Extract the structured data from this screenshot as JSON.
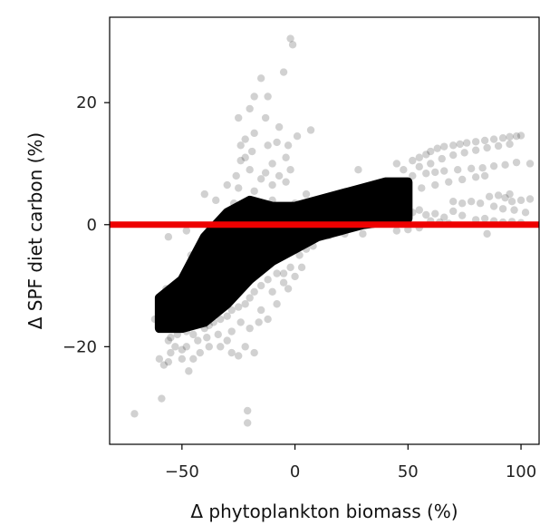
{
  "chart_data": {
    "type": "scatter",
    "title": "",
    "xlabel": "Δ phytoplankton biomass (%)",
    "ylabel": "Δ SPF diet carbon (%)",
    "xlim": [
      -82,
      108
    ],
    "ylim": [
      -36,
      34
    ],
    "xticks": [
      -50,
      0,
      50,
      100
    ],
    "yticks": [
      -20,
      0,
      20
    ],
    "xtick_labels": [
      "−50",
      "0",
      "50",
      "100"
    ],
    "ytick_labels": [
      "−20",
      "0",
      "20"
    ],
    "grid": false,
    "legend": "none",
    "point_color": "#000000",
    "point_opacity": 0.18,
    "reference_line": {
      "y": 0,
      "color": "#ee0000"
    },
    "dense_band": [
      {
        "x": -60,
        "y_low": -17,
        "y_high": -12
      },
      {
        "x": -50,
        "y_low": -17,
        "y_high": -9
      },
      {
        "x": -40,
        "y_low": -16,
        "y_high": -2
      },
      {
        "x": -30,
        "y_low": -13,
        "y_high": 2
      },
      {
        "x": -20,
        "y_low": -9,
        "y_high": 4
      },
      {
        "x": -10,
        "y_low": -6,
        "y_high": 3
      },
      {
        "x": 0,
        "y_low": -4,
        "y_high": 3
      },
      {
        "x": 10,
        "y_low": -2,
        "y_high": 4
      },
      {
        "x": 20,
        "y_low": -1,
        "y_high": 5
      },
      {
        "x": 30,
        "y_low": 0,
        "y_high": 6
      },
      {
        "x": 40,
        "y_low": 0.5,
        "y_high": 7
      },
      {
        "x": 50,
        "y_low": 1,
        "y_high": 7
      }
    ],
    "points": [
      [
        -2,
        30.5
      ],
      [
        -1,
        29.5
      ],
      [
        -5,
        25
      ],
      [
        -15,
        24
      ],
      [
        -18,
        21
      ],
      [
        -12,
        21
      ],
      [
        -20,
        19
      ],
      [
        -25,
        17.5
      ],
      [
        -13,
        17.5
      ],
      [
        -7,
        16
      ],
      [
        7,
        15.5
      ],
      [
        -18,
        15
      ],
      [
        -22,
        14
      ],
      [
        1,
        14.5
      ],
      [
        -12,
        13
      ],
      [
        -8,
        13.5
      ],
      [
        -3,
        13
      ],
      [
        -24,
        13
      ],
      [
        -19,
        12
      ],
      [
        -4,
        11
      ],
      [
        -22,
        11
      ],
      [
        -10,
        10
      ],
      [
        -24,
        10.5
      ],
      [
        -2,
        9
      ],
      [
        -20,
        9
      ],
      [
        -13,
        8.5
      ],
      [
        -26,
        8
      ],
      [
        -7,
        8
      ],
      [
        -15,
        7.5
      ],
      [
        -4,
        7
      ],
      [
        -30,
        6.5
      ],
      [
        -25,
        6
      ],
      [
        -10,
        6.5
      ],
      [
        -18,
        5.5
      ],
      [
        -40,
        5
      ],
      [
        -35,
        4
      ],
      [
        -10,
        4
      ],
      [
        5,
        5
      ],
      [
        -27,
        3.5
      ],
      [
        18,
        4
      ],
      [
        28,
        9
      ],
      [
        45,
        10
      ],
      [
        48,
        9
      ],
      [
        52,
        10.5
      ],
      [
        55,
        11
      ],
      [
        58,
        11.5
      ],
      [
        60,
        12
      ],
      [
        63,
        12.5
      ],
      [
        66,
        12.8
      ],
      [
        70,
        13
      ],
      [
        73,
        13.2
      ],
      [
        76,
        13.4
      ],
      [
        80,
        13.6
      ],
      [
        84,
        13.8
      ],
      [
        88,
        14
      ],
      [
        92,
        14.2
      ],
      [
        95,
        14.4
      ],
      [
        98,
        14.5
      ],
      [
        100,
        14.6
      ],
      [
        104,
        10
      ],
      [
        55,
        9.5
      ],
      [
        60,
        10
      ],
      [
        65,
        10.8
      ],
      [
        70,
        11.4
      ],
      [
        75,
        11.8
      ],
      [
        80,
        12.2
      ],
      [
        85,
        12.6
      ],
      [
        90,
        12.9
      ],
      [
        95,
        13.2
      ],
      [
        52,
        8
      ],
      [
        58,
        8.4
      ],
      [
        62,
        8.6
      ],
      [
        66,
        8.8
      ],
      [
        72,
        9
      ],
      [
        78,
        9.2
      ],
      [
        83,
        9.3
      ],
      [
        88,
        9.6
      ],
      [
        93,
        9.8
      ],
      [
        98,
        10.2
      ],
      [
        56,
        6
      ],
      [
        62,
        6.5
      ],
      [
        68,
        7
      ],
      [
        74,
        7.4
      ],
      [
        80,
        7.8
      ],
      [
        84,
        8
      ],
      [
        86,
        4.6
      ],
      [
        90,
        4.8
      ],
      [
        93,
        4.4
      ],
      [
        96,
        3.8
      ],
      [
        100,
        4
      ],
      [
        88,
        3
      ],
      [
        92,
        2.6
      ],
      [
        97,
        2.4
      ],
      [
        102,
        2
      ],
      [
        104,
        4.2
      ],
      [
        95,
        5
      ],
      [
        70,
        3.8
      ],
      [
        74,
        3.5
      ],
      [
        78,
        3.8
      ],
      [
        82,
        3.5
      ],
      [
        70,
        2.2
      ],
      [
        74,
        1.5
      ],
      [
        80,
        0.8
      ],
      [
        84,
        1
      ],
      [
        88,
        0.6
      ],
      [
        92,
        0.4
      ],
      [
        96,
        0.5
      ],
      [
        100,
        0.3
      ],
      [
        85,
        -1.5
      ],
      [
        40,
        3
      ],
      [
        44,
        2.6
      ],
      [
        48,
        2.2
      ],
      [
        52,
        2
      ],
      [
        55,
        2.4
      ],
      [
        58,
        1.6
      ],
      [
        62,
        1.8
      ],
      [
        66,
        1.2
      ],
      [
        60,
        0.6
      ],
      [
        64,
        0.4
      ],
      [
        68,
        0.2
      ],
      [
        55,
        -0.5
      ],
      [
        45,
        -1
      ],
      [
        50,
        -0.8
      ],
      [
        34,
        1
      ],
      [
        30,
        -1.5
      ],
      [
        20,
        -1
      ],
      [
        22,
        -1.5
      ],
      [
        10,
        -2
      ],
      [
        15,
        -1.8
      ],
      [
        6,
        -2.5
      ],
      [
        5,
        -4
      ],
      [
        8,
        -3.5
      ],
      [
        2,
        -5
      ],
      [
        -2,
        -7
      ],
      [
        -5,
        -8
      ],
      [
        -8,
        -8
      ],
      [
        -12,
        -9
      ],
      [
        -15,
        -10
      ],
      [
        -18,
        -11
      ],
      [
        -20,
        -12
      ],
      [
        -22,
        -13
      ],
      [
        -25,
        -13.5
      ],
      [
        -28,
        -14
      ],
      [
        -30,
        -15
      ],
      [
        -33,
        -15.5
      ],
      [
        -36,
        -16
      ],
      [
        -38,
        -16.5
      ],
      [
        -40,
        -17
      ],
      [
        -45,
        -18
      ],
      [
        -48,
        -17.5
      ],
      [
        -52,
        -18
      ],
      [
        -55,
        -18.5
      ],
      [
        -56,
        -19
      ],
      [
        -58,
        -17
      ],
      [
        -60,
        -16
      ],
      [
        -62,
        -15.5
      ],
      [
        -60,
        -22
      ],
      [
        -58,
        -23
      ],
      [
        -55,
        -21
      ],
      [
        -50,
        -22
      ],
      [
        -47,
        -24
      ],
      [
        -45,
        -22
      ],
      [
        -42,
        -21
      ],
      [
        -38,
        -20
      ],
      [
        -33,
        -20
      ],
      [
        -30,
        -19
      ],
      [
        -28,
        -21
      ],
      [
        -25,
        -21.5
      ],
      [
        -22,
        -20
      ],
      [
        -18,
        -21
      ],
      [
        -20,
        -17
      ],
      [
        -24,
        -16
      ],
      [
        -28,
        -17.5
      ],
      [
        -34,
        -18
      ],
      [
        -39,
        -18.5
      ],
      [
        -43,
        -19
      ],
      [
        -50,
        -20.5
      ],
      [
        -53,
        -20
      ],
      [
        -56,
        -22.5
      ],
      [
        -59,
        -28.5
      ],
      [
        -71,
        -31
      ],
      [
        -21,
        -30.5
      ],
      [
        -21,
        -32.5
      ],
      [
        -48,
        -20
      ],
      [
        -46,
        -13
      ],
      [
        -52,
        -14
      ],
      [
        -47,
        -11
      ],
      [
        -55,
        -12.5
      ],
      [
        -60,
        -13.5
      ],
      [
        -57,
        -10.5
      ],
      [
        -44,
        -8
      ],
      [
        -46,
        -5
      ],
      [
        -42,
        -3.5
      ],
      [
        -56,
        -2
      ],
      [
        -48,
        -1
      ],
      [
        -38,
        -0.5
      ],
      [
        -40,
        -6
      ],
      [
        -35,
        -10
      ],
      [
        -32,
        -12
      ],
      [
        -27,
        -10.5
      ],
      [
        -15,
        -14
      ],
      [
        -10,
        -11
      ],
      [
        -5,
        -9.5
      ],
      [
        -16,
        -16
      ],
      [
        -12,
        -15.5
      ],
      [
        -8,
        -13
      ],
      [
        -3,
        -10.5
      ],
      [
        0,
        -8.5
      ],
      [
        3,
        -7
      ],
      [
        -30,
        1
      ],
      [
        -20,
        -1
      ],
      [
        -10,
        1.5
      ],
      [
        -5,
        2.5
      ],
      [
        0,
        3.5
      ],
      [
        5,
        2
      ],
      [
        12,
        3.5
      ],
      [
        18,
        2
      ],
      [
        25,
        1.5
      ],
      [
        25,
        4
      ],
      [
        35,
        3.8
      ]
    ]
  }
}
